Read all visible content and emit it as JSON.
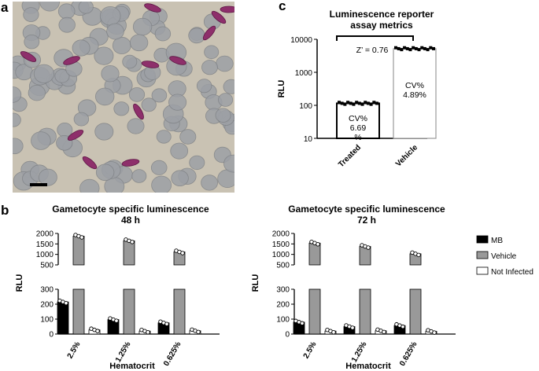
{
  "panels": {
    "a": "a",
    "b": "b",
    "c": "c"
  },
  "panel_c_labels": {
    "zprime": "Z’ = 0.76"
  },
  "chart_data": [
    {
      "type": "bar",
      "title": "Luminescence reporter assay metrics",
      "title_lines": [
        "Luminescence reporter",
        "assay metrics"
      ],
      "ylabel": "RLU",
      "yscale": "log",
      "ylim": [
        10,
        10000
      ],
      "yticks": [
        "10",
        "100",
        "1000",
        "10000"
      ],
      "categories": [
        "Treated",
        "Vehicle"
      ],
      "values": [
        115,
        5200
      ],
      "bar_colors": [
        "#ffffff",
        "#ffffff"
      ],
      "annotations": [
        {
          "category": "Treated",
          "lines": [
            "CV%",
            "6.69",
            "%"
          ]
        },
        {
          "category": "Vehicle",
          "lines": [
            "CV%",
            "4.89%"
          ]
        }
      ]
    },
    {
      "type": "bar",
      "title": "Gametocyte specific luminescence 48 h",
      "title_lines": [
        "Gametocyte specific luminescence",
        "48 h"
      ],
      "xlabel": "Hematocrit",
      "ylabel": "RLU",
      "y_axis_break": [
        300,
        500
      ],
      "yticks_lower": [
        "0",
        "100",
        "200",
        "300"
      ],
      "yticks_upper": [
        "500",
        "1000",
        "1500",
        "2000"
      ],
      "categories": [
        "2.5%",
        "1.25%",
        "0.625%"
      ],
      "series": [
        {
          "name": "MB",
          "values": [
            215,
            97,
            75
          ],
          "color": "#000000"
        },
        {
          "name": "Vehicle",
          "values": [
            1870,
            1650,
            1120
          ],
          "color": "#999999"
        },
        {
          "name": "Not Infected",
          "values": [
            28,
            20,
            22
          ],
          "color": "#ffffff"
        }
      ]
    },
    {
      "type": "bar",
      "title": "Gametocyte specific luminescence 72 h",
      "title_lines": [
        "Gametocyte specific luminescence",
        "72 h"
      ],
      "xlabel": "Hematocrit",
      "ylabel": "RLU",
      "y_axis_break": [
        300,
        500
      ],
      "yticks_lower": [
        "0",
        "100",
        "200",
        "300"
      ],
      "yticks_upper": [
        "500",
        "1000",
        "1500",
        "2000"
      ],
      "categories": [
        "2.5%",
        "1.25%",
        "0.625%"
      ],
      "series": [
        {
          "name": "MB",
          "values": [
            80,
            50,
            57
          ],
          "color": "#000000"
        },
        {
          "name": "Vehicle",
          "values": [
            1540,
            1380,
            1030
          ],
          "color": "#999999"
        },
        {
          "name": "Not Infected",
          "values": [
            20,
            22,
            18
          ],
          "color": "#ffffff"
        }
      ]
    }
  ],
  "legend": {
    "items": [
      {
        "label": "MB",
        "color": "#000000"
      },
      {
        "label": "Vehicle",
        "color": "#999999"
      },
      {
        "label": "Not Infected",
        "color": "#ffffff"
      }
    ]
  }
}
